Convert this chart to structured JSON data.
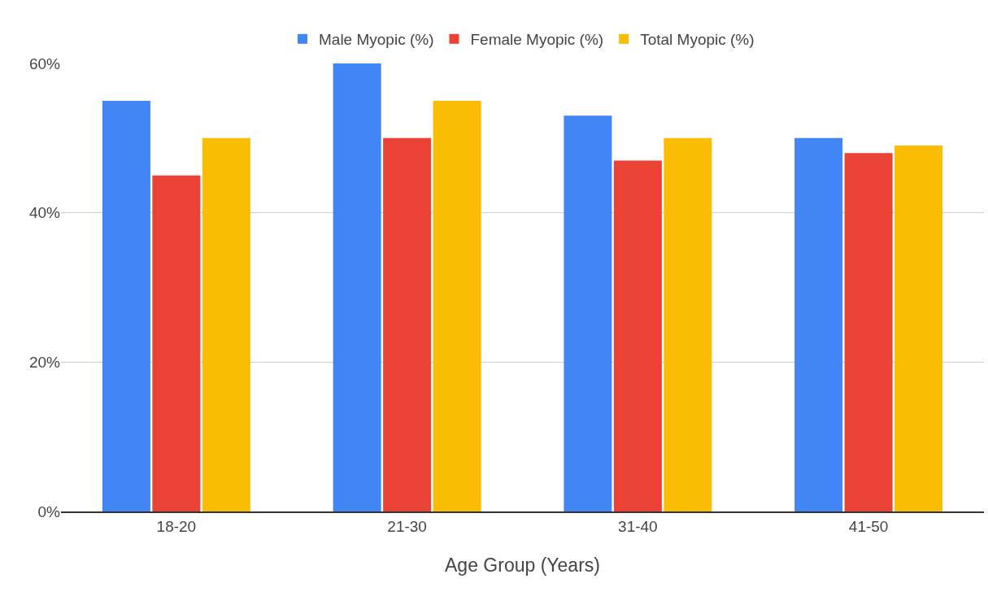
{
  "chart_data": {
    "type": "bar",
    "xlabel": "Age Group (Years)",
    "categories": [
      "18-20",
      "21-30",
      "31-40",
      "41-50"
    ],
    "series": [
      {
        "name": "Male Myopic (%)",
        "color": "#4285f4",
        "values": [
          55,
          60,
          53,
          50
        ]
      },
      {
        "name": "Female Myopic (%)",
        "color": "#ea4335",
        "values": [
          45,
          50,
          47,
          48
        ]
      },
      {
        "name": "Total Myopic (%)",
        "color": "#fbbc04",
        "values": [
          50,
          55,
          50,
          49
        ]
      }
    ],
    "ylim": [
      0,
      60
    ],
    "yticks": [
      {
        "value": 0,
        "label": "0%"
      },
      {
        "value": 20,
        "label": "20%"
      },
      {
        "value": 40,
        "label": "40%"
      },
      {
        "value": 60,
        "label": "60%"
      }
    ],
    "grid": "y",
    "legend": "top"
  }
}
